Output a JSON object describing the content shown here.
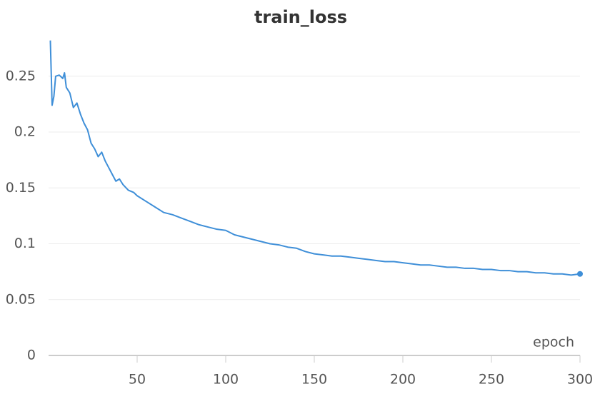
{
  "chart_data": {
    "type": "line",
    "title": "train_loss",
    "x_label": "epoch",
    "x": [
      1,
      2,
      3,
      4,
      6,
      8,
      9,
      10,
      12,
      14,
      16,
      18,
      20,
      22,
      24,
      26,
      28,
      30,
      32,
      34,
      36,
      38,
      40,
      42,
      45,
      48,
      50,
      55,
      60,
      65,
      70,
      75,
      80,
      85,
      90,
      95,
      100,
      105,
      110,
      115,
      120,
      125,
      130,
      135,
      140,
      145,
      150,
      155,
      160,
      165,
      170,
      175,
      180,
      185,
      190,
      195,
      200,
      205,
      210,
      215,
      220,
      225,
      230,
      235,
      240,
      245,
      250,
      255,
      260,
      265,
      270,
      275,
      280,
      285,
      290,
      295,
      300
    ],
    "series": [
      {
        "name": "train_loss",
        "color": "#3f8fd8",
        "values": [
          0.282,
          0.224,
          0.232,
          0.25,
          0.251,
          0.248,
          0.253,
          0.24,
          0.235,
          0.222,
          0.226,
          0.216,
          0.208,
          0.202,
          0.19,
          0.185,
          0.178,
          0.182,
          0.174,
          0.168,
          0.162,
          0.156,
          0.158,
          0.153,
          0.148,
          0.146,
          0.143,
          0.138,
          0.133,
          0.128,
          0.126,
          0.123,
          0.12,
          0.117,
          0.115,
          0.113,
          0.112,
          0.108,
          0.106,
          0.104,
          0.102,
          0.1,
          0.099,
          0.097,
          0.096,
          0.093,
          0.091,
          0.09,
          0.089,
          0.089,
          0.088,
          0.087,
          0.086,
          0.085,
          0.084,
          0.084,
          0.083,
          0.082,
          0.081,
          0.081,
          0.08,
          0.079,
          0.079,
          0.078,
          0.078,
          0.077,
          0.077,
          0.076,
          0.076,
          0.075,
          0.075,
          0.074,
          0.074,
          0.073,
          0.073,
          0.072,
          0.073
        ]
      }
    ],
    "xlim": [
      0,
      300
    ],
    "xticks": [
      50,
      100,
      150,
      200,
      250,
      300
    ],
    "ylim": [
      0,
      0.285
    ],
    "yticks": [
      0,
      0.05,
      0.1,
      0.15,
      0.2,
      0.25
    ],
    "grid": true
  }
}
